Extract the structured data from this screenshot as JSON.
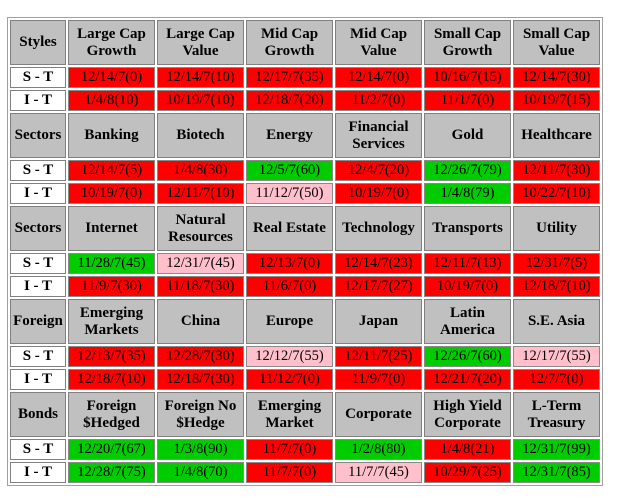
{
  "colors": {
    "red": "#ff0000",
    "green": "#00cc00",
    "pink": "#ffc0cb",
    "header": "#c0c0c0"
  },
  "groups": [
    {
      "label": "Styles",
      "headers": [
        "Large Cap Growth",
        "Large Cap Value",
        "Mid Cap Growth",
        "Mid Cap Value",
        "Small Cap Growth",
        "Small Cap Value"
      ],
      "rows": [
        {
          "label": "S - T",
          "cells": [
            {
              "text": "12/14/7(0)",
              "color": "red"
            },
            {
              "text": "12/14/7(10)",
              "color": "red"
            },
            {
              "text": "12/17/7(35)",
              "color": "red"
            },
            {
              "text": "12/14/7(0)",
              "color": "red"
            },
            {
              "text": "10/16/7(15)",
              "color": "red"
            },
            {
              "text": "12/14/7(30)",
              "color": "red"
            }
          ]
        },
        {
          "label": "I - T",
          "cells": [
            {
              "text": "1/4/8(10)",
              "color": "red"
            },
            {
              "text": "10/19/7(10)",
              "color": "red"
            },
            {
              "text": "12/18/7(20)",
              "color": "red"
            },
            {
              "text": "11/2/7(0)",
              "color": "red"
            },
            {
              "text": "11/1/7(0)",
              "color": "red"
            },
            {
              "text": "10/19/7(15)",
              "color": "red"
            }
          ]
        }
      ]
    },
    {
      "label": "Sectors",
      "headers": [
        "Banking",
        "Biotech",
        "Energy",
        "Financial Services",
        "Gold",
        "Healthcare"
      ],
      "rows": [
        {
          "label": "S - T",
          "cells": [
            {
              "text": "12/14/7(5)",
              "color": "red"
            },
            {
              "text": "1/4/8(30)",
              "color": "red"
            },
            {
              "text": "12/5/7(60)",
              "color": "green"
            },
            {
              "text": "12/4/7(20)",
              "color": "red"
            },
            {
              "text": "12/26/7(79)",
              "color": "green"
            },
            {
              "text": "12/11/7(30)",
              "color": "red"
            }
          ]
        },
        {
          "label": "I - T",
          "cells": [
            {
              "text": "10/19/7(0)",
              "color": "red"
            },
            {
              "text": "12/11/7(10)",
              "color": "red"
            },
            {
              "text": "11/12/7(50)",
              "color": "pink"
            },
            {
              "text": "10/19/7(0)",
              "color": "red"
            },
            {
              "text": "1/4/8(79)",
              "color": "green"
            },
            {
              "text": "10/22/7(10)",
              "color": "red"
            }
          ]
        }
      ]
    },
    {
      "label": "Sectors",
      "headers": [
        "Internet",
        "Natural Resources",
        "Real Estate",
        "Technology",
        "Transports",
        "Utility"
      ],
      "rows": [
        {
          "label": "S - T",
          "cells": [
            {
              "text": "11/28/7(45)",
              "color": "green"
            },
            {
              "text": "12/31/7(45)",
              "color": "pink"
            },
            {
              "text": "12/13/7(0)",
              "color": "red"
            },
            {
              "text": "12/14/7(23)",
              "color": "red"
            },
            {
              "text": "12/11/7(13)",
              "color": "red"
            },
            {
              "text": "12/31/7(5)",
              "color": "red"
            }
          ]
        },
        {
          "label": "I - T",
          "cells": [
            {
              "text": "11/9/7(30)",
              "color": "red"
            },
            {
              "text": "11/18/7(30)",
              "color": "red"
            },
            {
              "text": "11/6/7(0)",
              "color": "red"
            },
            {
              "text": "12/17/7(27)",
              "color": "red"
            },
            {
              "text": "10/19/7(0)",
              "color": "red"
            },
            {
              "text": "12/18/7(10)",
              "color": "red"
            }
          ]
        }
      ]
    },
    {
      "label": "Foreign",
      "headers": [
        "Emerging Markets",
        "China",
        "Europe",
        "Japan",
        "Latin America",
        "S.E. Asia"
      ],
      "rows": [
        {
          "label": "S - T",
          "cells": [
            {
              "text": "12/13/7(35)",
              "color": "red"
            },
            {
              "text": "12/28/7(30)",
              "color": "red"
            },
            {
              "text": "12/12/7(55)",
              "color": "pink"
            },
            {
              "text": "12/11/7(25)",
              "color": "red"
            },
            {
              "text": "12/26/7(60)",
              "color": "green"
            },
            {
              "text": "12/17/7(55)",
              "color": "pink"
            }
          ]
        },
        {
          "label": "I - T",
          "cells": [
            {
              "text": "12/18/7(10)",
              "color": "red"
            },
            {
              "text": "12/18/7(30)",
              "color": "red"
            },
            {
              "text": "11/12/7(0)",
              "color": "red"
            },
            {
              "text": "11/9/7(0)",
              "color": "red"
            },
            {
              "text": "12/21/7(20)",
              "color": "red"
            },
            {
              "text": "12/7/7(0)",
              "color": "red"
            }
          ]
        }
      ]
    },
    {
      "label": "Bonds",
      "headers": [
        "Foreign $Hedged",
        "Foreign No $Hedge",
        "Emerging Market",
        "Corporate",
        "High Yield Corporate",
        "L-Term Treasury"
      ],
      "rows": [
        {
          "label": "S - T",
          "cells": [
            {
              "text": "12/20/7(67)",
              "color": "green"
            },
            {
              "text": "1/3/8(90)",
              "color": "green"
            },
            {
              "text": "11/7/7(0)",
              "color": "red"
            },
            {
              "text": "1/2/8(80)",
              "color": "green"
            },
            {
              "text": "1/4/8(21)",
              "color": "red"
            },
            {
              "text": "12/31/7(99)",
              "color": "green"
            }
          ]
        },
        {
          "label": "I - T",
          "cells": [
            {
              "text": "12/28/7(75)",
              "color": "green"
            },
            {
              "text": "1/4/8(70)",
              "color": "green"
            },
            {
              "text": "11/7/7(0)",
              "color": "red"
            },
            {
              "text": "11/7/7(45)",
              "color": "pink"
            },
            {
              "text": "10/29/7(25)",
              "color": "red"
            },
            {
              "text": "12/31/7(85)",
              "color": "green"
            }
          ]
        }
      ]
    }
  ]
}
